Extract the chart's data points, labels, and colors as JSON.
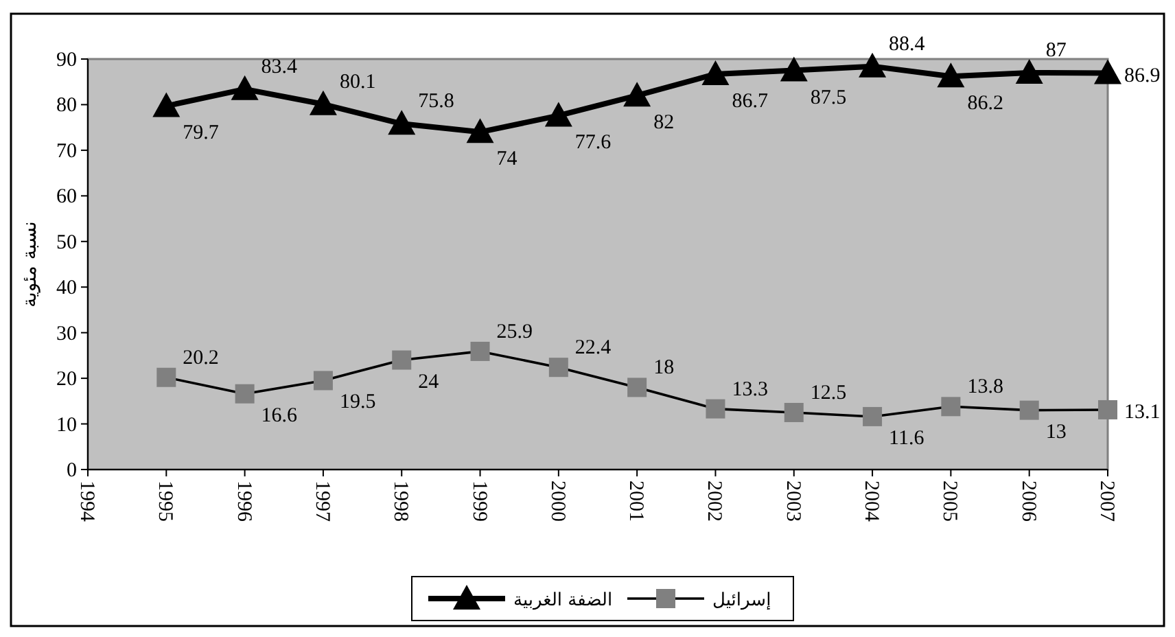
{
  "chart_data": {
    "type": "line",
    "ylabel": "نسبة مئوية",
    "x": [
      1995,
      1996,
      1997,
      1998,
      1999,
      2000,
      2001,
      2002,
      2003,
      2004,
      2005,
      2006,
      2007
    ],
    "xlim": [
      1994,
      2007
    ],
    "xticks": [
      1994,
      1995,
      1996,
      1997,
      1998,
      1999,
      2000,
      2001,
      2002,
      2003,
      2004,
      2005,
      2006,
      2007
    ],
    "ylim": [
      0,
      90
    ],
    "yticks": [
      0,
      10,
      20,
      30,
      40,
      50,
      60,
      70,
      80,
      90
    ],
    "grid": false,
    "legend": "bottom",
    "data_labels": true,
    "line_style": "solid",
    "series": [
      {
        "name": "الضفة الغربية",
        "color": "#000000",
        "marker": "triangle",
        "values": [
          79.7,
          83.4,
          80.1,
          75.8,
          74,
          77.6,
          82,
          86.7,
          87.5,
          88.4,
          86.2,
          87,
          86.9
        ]
      },
      {
        "name": "إسرائيل",
        "color": "#000000",
        "marker": "square",
        "values": [
          20.2,
          16.6,
          19.5,
          24,
          25.9,
          22.4,
          18,
          13.3,
          12.5,
          11.6,
          13.8,
          13,
          13.1
        ]
      }
    ]
  }
}
